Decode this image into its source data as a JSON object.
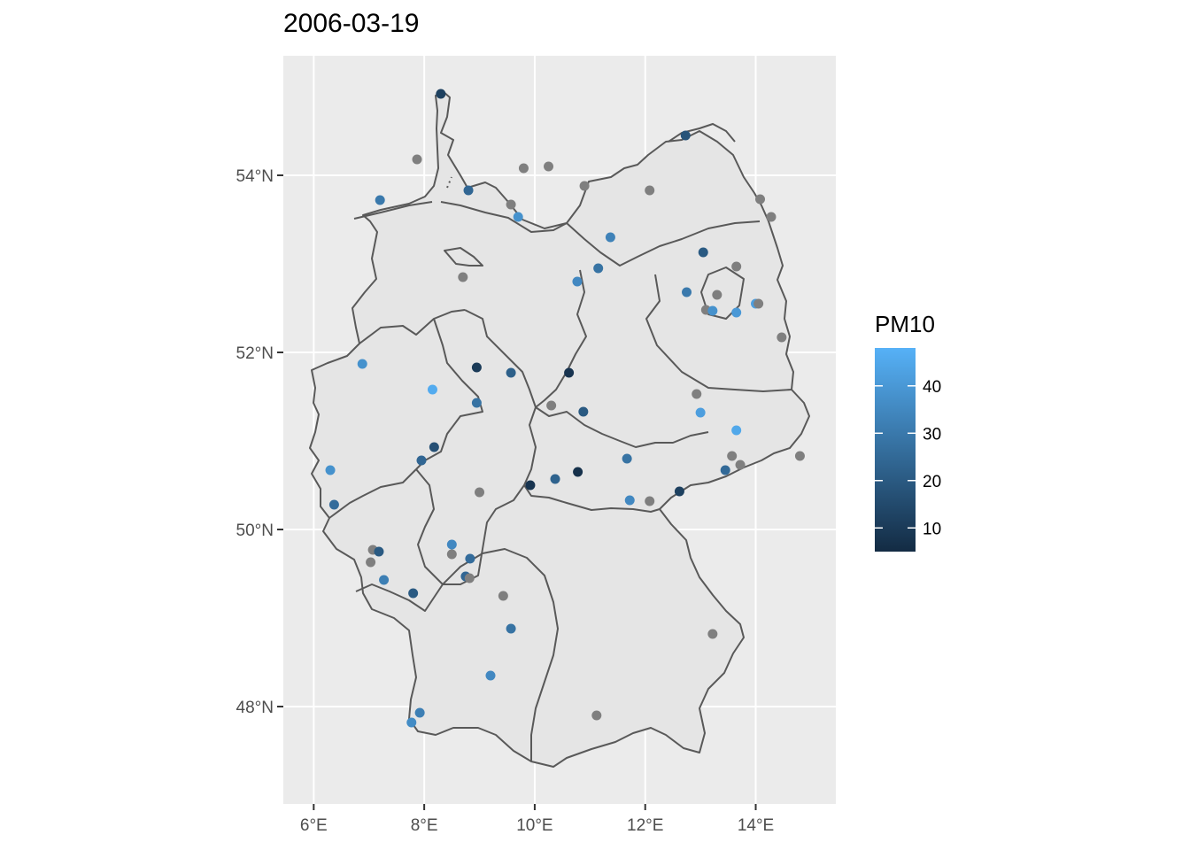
{
  "map": {
    "title": "2006-03-19",
    "lon_range": [
      5.45,
      15.45
    ],
    "lat_range": [
      46.9,
      55.35
    ],
    "x_ticks": [
      {
        "value": 6,
        "label": "6°E"
      },
      {
        "value": 8,
        "label": "8°E"
      },
      {
        "value": 10,
        "label": "10°E"
      },
      {
        "value": 12,
        "label": "12°E"
      },
      {
        "value": 14,
        "label": "14°E"
      }
    ],
    "y_ticks": [
      {
        "value": 48,
        "label": "48°N"
      },
      {
        "value": 50,
        "label": "50°N"
      },
      {
        "value": 52,
        "label": "52°N"
      },
      {
        "value": 54,
        "label": "54°N"
      }
    ],
    "grid": true,
    "colors": {
      "panel": "#ebebeb",
      "grid": "#ffffff",
      "land": "#e5e5e5",
      "border": "#595959",
      "na_point": "#7f7f7f",
      "low": "#132b43",
      "high": "#56b1f7"
    },
    "legend": {
      "title": "PM10",
      "position": "right",
      "min": 5,
      "max": 48,
      "ticks": [
        10,
        20,
        30,
        40
      ]
    }
  },
  "chart_data": {
    "type": "scatter",
    "xlabel": "",
    "ylabel": "",
    "points": [
      {
        "lon": 8.3,
        "lat": 54.92,
        "pm10": 12
      },
      {
        "lon": 7.87,
        "lat": 54.18,
        "pm10": null
      },
      {
        "lon": 7.2,
        "lat": 53.72,
        "pm10": 30
      },
      {
        "lon": 8.8,
        "lat": 53.83,
        "pm10": 24
      },
      {
        "lon": 9.8,
        "lat": 54.08,
        "pm10": null
      },
      {
        "lon": 10.25,
        "lat": 54.1,
        "pm10": null
      },
      {
        "lon": 9.57,
        "lat": 53.67,
        "pm10": null
      },
      {
        "lon": 9.7,
        "lat": 53.53,
        "pm10": 38
      },
      {
        "lon": 10.9,
        "lat": 53.88,
        "pm10": null
      },
      {
        "lon": 12.73,
        "lat": 54.45,
        "pm10": 18
      },
      {
        "lon": 12.08,
        "lat": 53.83,
        "pm10": null
      },
      {
        "lon": 14.08,
        "lat": 53.73,
        "pm10": null
      },
      {
        "lon": 14.28,
        "lat": 53.53,
        "pm10": null
      },
      {
        "lon": 11.37,
        "lat": 53.3,
        "pm10": 33
      },
      {
        "lon": 13.05,
        "lat": 53.13,
        "pm10": 20
      },
      {
        "lon": 13.65,
        "lat": 52.97,
        "pm10": null
      },
      {
        "lon": 11.15,
        "lat": 52.95,
        "pm10": 28
      },
      {
        "lon": 10.77,
        "lat": 52.8,
        "pm10": 35
      },
      {
        "lon": 8.7,
        "lat": 52.85,
        "pm10": null
      },
      {
        "lon": 12.75,
        "lat": 52.68,
        "pm10": 30
      },
      {
        "lon": 13.3,
        "lat": 52.65,
        "pm10": null
      },
      {
        "lon": 13.1,
        "lat": 52.48,
        "pm10": null
      },
      {
        "lon": 13.22,
        "lat": 52.47,
        "pm10": 38
      },
      {
        "lon": 13.65,
        "lat": 52.45,
        "pm10": 40
      },
      {
        "lon": 14.0,
        "lat": 52.55,
        "pm10": 42
      },
      {
        "lon": 14.05,
        "lat": 52.55,
        "pm10": null
      },
      {
        "lon": 14.47,
        "lat": 52.17,
        "pm10": null
      },
      {
        "lon": 6.88,
        "lat": 51.87,
        "pm10": 38
      },
      {
        "lon": 8.15,
        "lat": 51.58,
        "pm10": 46
      },
      {
        "lon": 8.95,
        "lat": 51.83,
        "pm10": 10
      },
      {
        "lon": 9.57,
        "lat": 51.77,
        "pm10": 22
      },
      {
        "lon": 10.62,
        "lat": 51.77,
        "pm10": 8
      },
      {
        "lon": 8.95,
        "lat": 51.43,
        "pm10": 28
      },
      {
        "lon": 10.3,
        "lat": 51.4,
        "pm10": null
      },
      {
        "lon": 10.88,
        "lat": 51.33,
        "pm10": 20
      },
      {
        "lon": 12.93,
        "lat": 51.53,
        "pm10": null
      },
      {
        "lon": 13.0,
        "lat": 51.32,
        "pm10": 42
      },
      {
        "lon": 13.65,
        "lat": 51.12,
        "pm10": 45
      },
      {
        "lon": 8.18,
        "lat": 50.93,
        "pm10": 17
      },
      {
        "lon": 7.95,
        "lat": 50.78,
        "pm10": 24
      },
      {
        "lon": 11.67,
        "lat": 50.8,
        "pm10": 28
      },
      {
        "lon": 13.57,
        "lat": 50.83,
        "pm10": null
      },
      {
        "lon": 13.72,
        "lat": 50.73,
        "pm10": null
      },
      {
        "lon": 14.8,
        "lat": 50.83,
        "pm10": null
      },
      {
        "lon": 6.3,
        "lat": 50.67,
        "pm10": 38
      },
      {
        "lon": 10.78,
        "lat": 50.65,
        "pm10": 7
      },
      {
        "lon": 13.45,
        "lat": 50.67,
        "pm10": 25
      },
      {
        "lon": 10.37,
        "lat": 50.57,
        "pm10": 23
      },
      {
        "lon": 9.92,
        "lat": 50.5,
        "pm10": 8
      },
      {
        "lon": 9.0,
        "lat": 50.42,
        "pm10": null
      },
      {
        "lon": 12.62,
        "lat": 50.43,
        "pm10": 12
      },
      {
        "lon": 11.72,
        "lat": 50.33,
        "pm10": 35
      },
      {
        "lon": 12.08,
        "lat": 50.32,
        "pm10": null
      },
      {
        "lon": 6.37,
        "lat": 50.28,
        "pm10": 26
      },
      {
        "lon": 8.5,
        "lat": 49.83,
        "pm10": 35
      },
      {
        "lon": 8.5,
        "lat": 49.72,
        "pm10": null
      },
      {
        "lon": 7.07,
        "lat": 49.77,
        "pm10": null
      },
      {
        "lon": 7.18,
        "lat": 49.75,
        "pm10": 20
      },
      {
        "lon": 7.03,
        "lat": 49.63,
        "pm10": null
      },
      {
        "lon": 8.83,
        "lat": 49.67,
        "pm10": 26
      },
      {
        "lon": 7.27,
        "lat": 49.43,
        "pm10": 32
      },
      {
        "lon": 8.75,
        "lat": 49.47,
        "pm10": 24
      },
      {
        "lon": 8.82,
        "lat": 49.45,
        "pm10": null
      },
      {
        "lon": 7.8,
        "lat": 49.28,
        "pm10": 20
      },
      {
        "lon": 9.43,
        "lat": 49.25,
        "pm10": null
      },
      {
        "lon": 9.57,
        "lat": 48.88,
        "pm10": 28
      },
      {
        "lon": 13.22,
        "lat": 48.82,
        "pm10": null
      },
      {
        "lon": 9.2,
        "lat": 48.35,
        "pm10": 35
      },
      {
        "lon": 7.92,
        "lat": 47.93,
        "pm10": 32
      },
      {
        "lon": 7.77,
        "lat": 47.82,
        "pm10": 36
      },
      {
        "lon": 11.12,
        "lat": 47.9,
        "pm10": null
      }
    ]
  }
}
